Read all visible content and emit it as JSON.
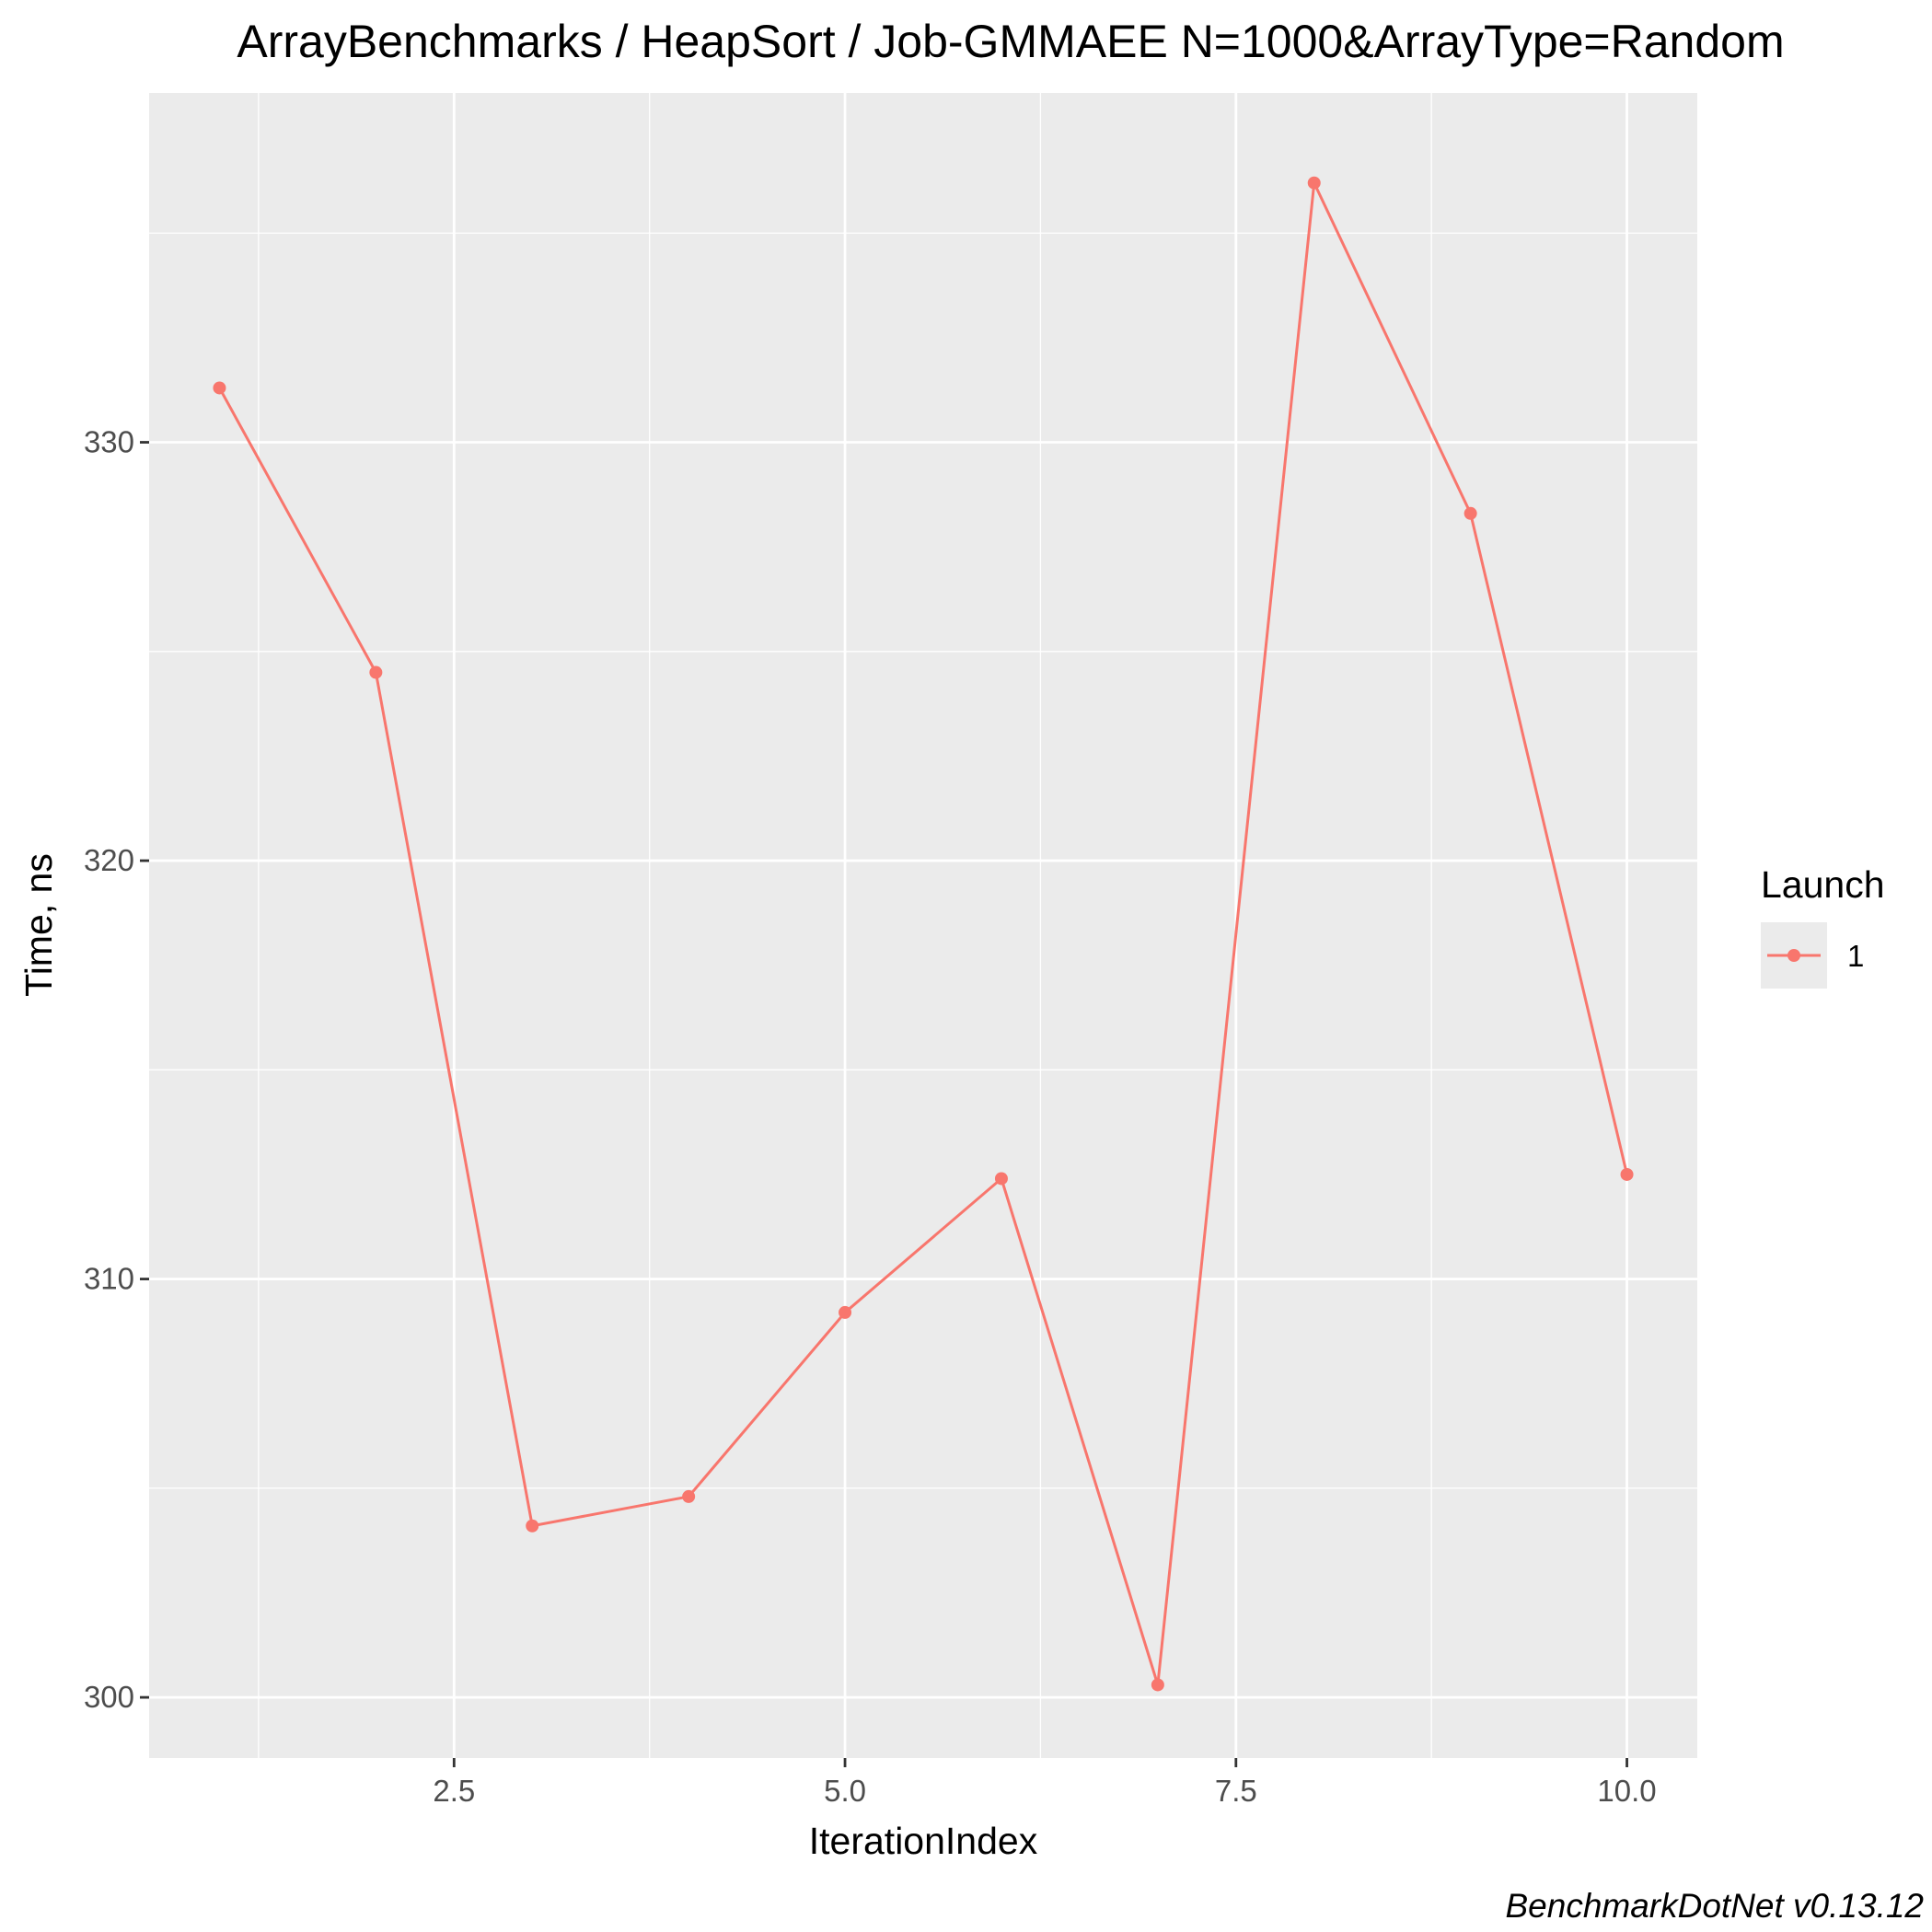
{
  "chart_data": {
    "type": "line",
    "title": "ArrayBenchmarks / HeapSort / Job-GMMAEE N=1000&ArrayType=Random",
    "xlabel": "IterationIndex",
    "ylabel": "Time, ns",
    "xlim": [
      0.55,
      10.45
    ],
    "ylim": [
      298.55,
      338.35
    ],
    "x_ticks": [
      2.5,
      5.0,
      7.5,
      10.0
    ],
    "x_tick_labels": [
      "2.5",
      "5.0",
      "7.5",
      "10.0"
    ],
    "x_minor_ticks": [
      1.25,
      3.75,
      6.25,
      8.75
    ],
    "y_ticks": [
      300,
      310,
      320,
      330
    ],
    "y_tick_labels": [
      "300",
      "310",
      "320",
      "330"
    ],
    "y_minor_ticks": [
      305,
      315,
      325,
      335
    ],
    "grid": true,
    "legend": {
      "title": "Launch",
      "position": "right"
    },
    "series": [
      {
        "name": "1",
        "color": "#F8766D",
        "x": [
          1,
          2,
          3,
          4,
          5,
          6,
          7,
          8,
          9,
          10
        ],
        "y": [
          331.3,
          324.5,
          304.1,
          304.8,
          309.2,
          312.4,
          300.3,
          336.2,
          328.3,
          312.5
        ]
      }
    ]
  },
  "caption": "BenchmarkDotNet v0.13.12",
  "colors": {
    "panel_background": "#EBEBEB",
    "grid": "#FFFFFF",
    "series": "#F8766D"
  }
}
